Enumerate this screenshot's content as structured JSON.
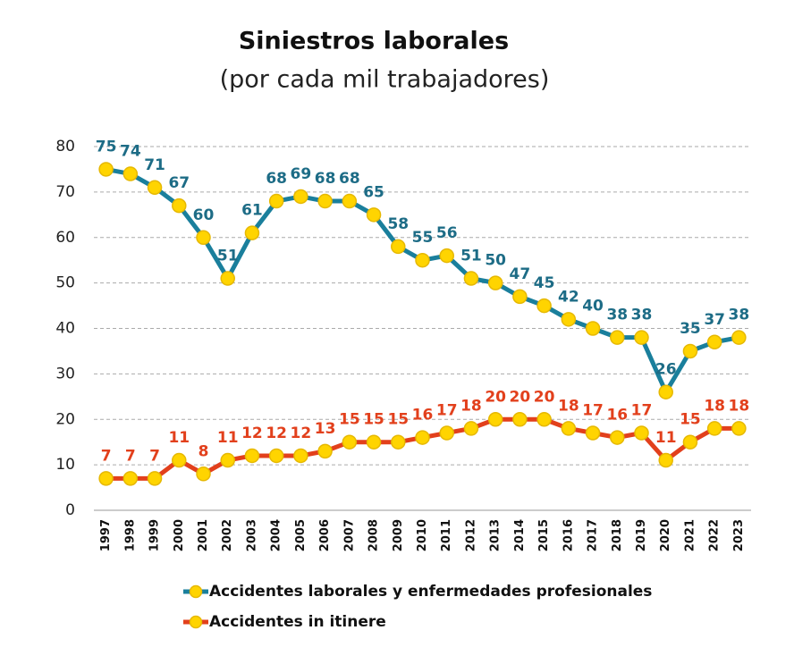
{
  "chart_data": {
    "type": "line",
    "title": "Siniestros laborales",
    "subtitle": "(por cada mil trabajadores)",
    "categories": [
      "1997",
      "1998",
      "1999",
      "2000",
      "2001",
      "2002",
      "2003",
      "2004",
      "2005",
      "2006",
      "2007",
      "2008",
      "2009",
      "2010",
      "2011",
      "2012",
      "2013",
      "2014",
      "2015",
      "2016",
      "2017",
      "2018",
      "2019",
      "2020",
      "2021",
      "2022",
      "2023"
    ],
    "series": [
      {
        "name": "Accidentes laborales y enfermedades profesionales",
        "color": "#1a7f9c",
        "label_color": "#1d6c86",
        "values": [
          75,
          74,
          71,
          67,
          60,
          51,
          61,
          68,
          69,
          68,
          68,
          65,
          58,
          55,
          56,
          51,
          50,
          47,
          45,
          42,
          40,
          38,
          38,
          26,
          35,
          37,
          38
        ]
      },
      {
        "name": "Accidentes in itinere",
        "color": "#e2401c",
        "label_color": "#e2401c",
        "values": [
          7,
          7,
          7,
          11,
          8,
          11,
          12,
          12,
          12,
          13,
          15,
          15,
          15,
          16,
          17,
          18,
          20,
          20,
          20,
          18,
          17,
          16,
          17,
          11,
          15,
          18,
          18
        ]
      }
    ],
    "marker_color": "#ffd400",
    "ylim": [
      0,
      80
    ],
    "yticks": [
      0,
      10,
      20,
      30,
      40,
      50,
      60,
      70,
      80
    ],
    "grid": true
  }
}
